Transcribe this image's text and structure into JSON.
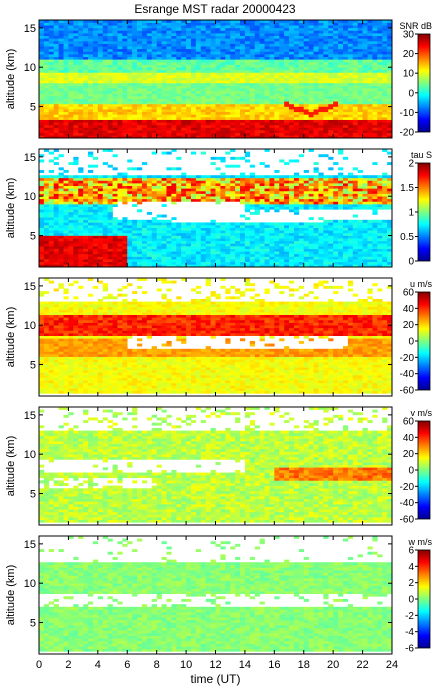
{
  "title": "Esrange MST radar 20000423",
  "chart_data": [
    {
      "type": "heatmap",
      "ylabel": "altitude (km)",
      "xlabel": "",
      "xlim": [
        0,
        24
      ],
      "ylim": [
        1,
        16
      ],
      "xticks": [
        0,
        2,
        4,
        6,
        8,
        10,
        12,
        14,
        16,
        18,
        20,
        22,
        24
      ],
      "yticks": [
        5,
        10,
        15
      ],
      "colorbar": {
        "label": "SNR dB",
        "range": [
          -20,
          30
        ],
        "ticks": [
          -20,
          -10,
          0,
          10,
          20,
          30
        ]
      }
    },
    {
      "type": "heatmap",
      "ylabel": "altitude (km)",
      "xlabel": "",
      "xlim": [
        0,
        24
      ],
      "ylim": [
        1,
        16
      ],
      "xticks": [
        0,
        2,
        4,
        6,
        8,
        10,
        12,
        14,
        16,
        18,
        20,
        22,
        24
      ],
      "yticks": [
        5,
        10,
        15
      ],
      "colorbar": {
        "label": "tau S",
        "range": [
          0,
          2
        ],
        "ticks": [
          0,
          0.5,
          1,
          1.5,
          2
        ]
      }
    },
    {
      "type": "heatmap",
      "ylabel": "altitude (km)",
      "xlabel": "",
      "xlim": [
        0,
        24
      ],
      "ylim": [
        1,
        16
      ],
      "xticks": [
        0,
        2,
        4,
        6,
        8,
        10,
        12,
        14,
        16,
        18,
        20,
        22,
        24
      ],
      "yticks": [
        5,
        10,
        15
      ],
      "colorbar": {
        "label": "u m/s",
        "range": [
          -60,
          60
        ],
        "ticks": [
          -60,
          -40,
          -20,
          0,
          20,
          40,
          60
        ]
      }
    },
    {
      "type": "heatmap",
      "ylabel": "altitude (km)",
      "xlabel": "",
      "xlim": [
        0,
        24
      ],
      "ylim": [
        1,
        16
      ],
      "xticks": [
        0,
        2,
        4,
        6,
        8,
        10,
        12,
        14,
        16,
        18,
        20,
        22,
        24
      ],
      "yticks": [
        5,
        10,
        15
      ],
      "colorbar": {
        "label": "v m/s",
        "range": [
          -60,
          60
        ],
        "ticks": [
          -60,
          -40,
          -20,
          0,
          20,
          40,
          60
        ]
      }
    },
    {
      "type": "heatmap",
      "ylabel": "altitude (km)",
      "xlabel": "time (UT)",
      "xlim": [
        0,
        24
      ],
      "ylim": [
        1,
        16
      ],
      "xticks": [
        0,
        2,
        4,
        6,
        8,
        10,
        12,
        14,
        16,
        18,
        20,
        22,
        24
      ],
      "yticks": [
        5,
        10,
        15
      ],
      "colorbar": {
        "label": "w m/s",
        "range": [
          -6,
          6
        ],
        "ticks": [
          -6,
          -4,
          -2,
          0,
          2,
          4,
          6
        ]
      }
    }
  ]
}
